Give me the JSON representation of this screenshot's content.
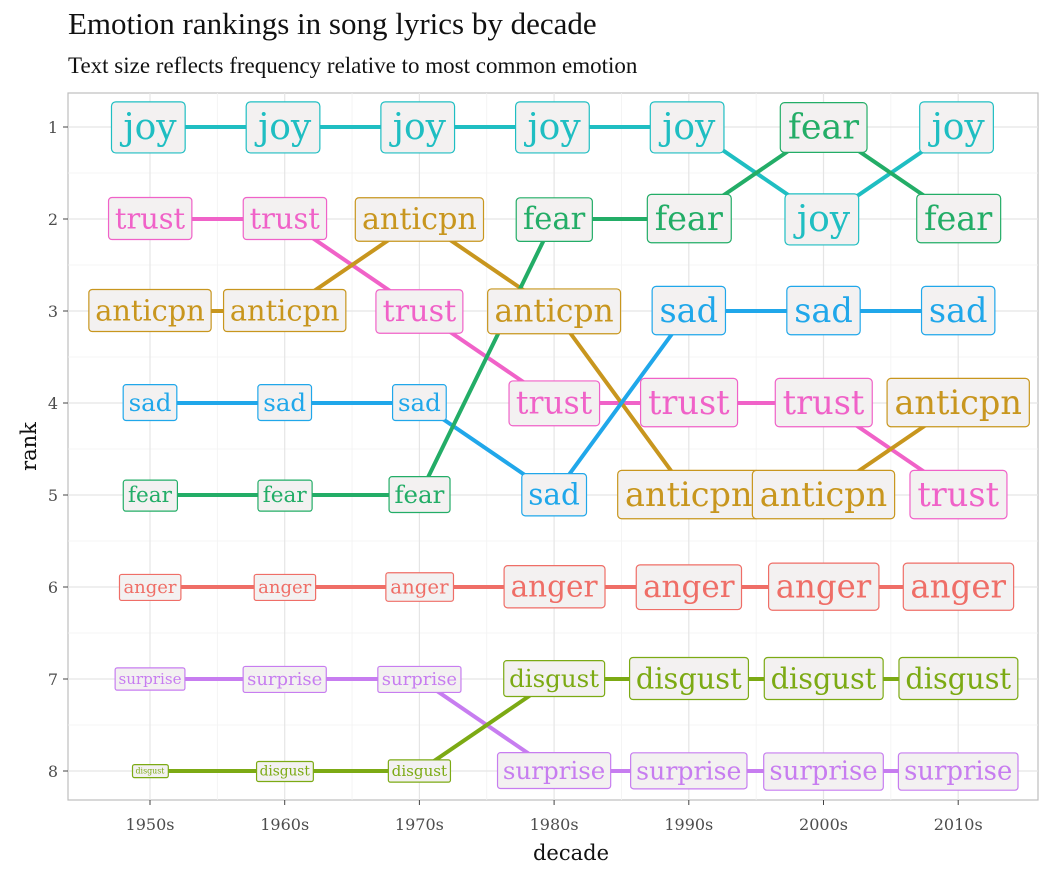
{
  "title": "Emotion rankings in song lyrics by decade",
  "subtitle": "Text size reflects frequency relative to most common emotion",
  "chart_data": {
    "type": "line",
    "xlabel": "decade",
    "ylabel": "rank",
    "x_categories": [
      "1950s",
      "1960s",
      "1970s",
      "1980s",
      "1990s",
      "2000s",
      "2010s"
    ],
    "y_ticks": [
      1,
      2,
      3,
      4,
      5,
      6,
      7,
      8
    ],
    "y_reversed": true,
    "grid": true,
    "series": [
      {
        "name": "joy",
        "label": "joy",
        "color": "#1fbec2",
        "ranks": [
          1,
          1,
          1,
          1,
          1,
          2,
          1
        ],
        "sizes": [
          1,
          1,
          1,
          1,
          1,
          1,
          1
        ]
      },
      {
        "name": "trust",
        "label": "trust",
        "color": "#f062c8",
        "ranks": [
          2,
          2,
          3,
          4,
          4,
          4,
          5
        ],
        "sizes": [
          0.8,
          0.8,
          0.84,
          0.87,
          0.93,
          0.93,
          0.93
        ]
      },
      {
        "name": "anticpn",
        "label": "anticpn",
        "color": "#c8961e",
        "ranks": [
          3,
          3,
          2,
          3,
          5,
          5,
          4
        ],
        "sizes": [
          0.8,
          0.8,
          0.84,
          0.87,
          0.93,
          0.93,
          0.93
        ]
      },
      {
        "name": "sad",
        "label": "sad",
        "color": "#20a7ea",
        "ranks": [
          4,
          4,
          4,
          5,
          3,
          3,
          3
        ],
        "sizes": [
          0.68,
          0.68,
          0.68,
          0.82,
          0.93,
          0.93,
          0.93
        ]
      },
      {
        "name": "fear",
        "label": "fear",
        "color": "#23ad67",
        "ranks": [
          5,
          5,
          5,
          2,
          2,
          1,
          2
        ],
        "sizes": [
          0.6,
          0.6,
          0.68,
          0.85,
          0.93,
          0.97,
          0.93
        ]
      },
      {
        "name": "anger",
        "label": "anger",
        "color": "#ef6e67",
        "ranks": [
          6,
          6,
          6,
          6,
          6,
          6,
          6
        ],
        "sizes": [
          0.5,
          0.5,
          0.55,
          0.82,
          0.86,
          0.9,
          0.9
        ]
      },
      {
        "name": "surprise",
        "label": "surprise",
        "color": "#c77df0",
        "ranks": [
          7,
          7,
          7,
          8,
          8,
          8,
          8
        ],
        "sizes": [
          0.42,
          0.5,
          0.5,
          0.68,
          0.7,
          0.72,
          0.72
        ]
      },
      {
        "name": "disgust",
        "label": "disgust",
        "color": "#7caa14",
        "ranks": [
          8,
          8,
          8,
          7,
          7,
          7,
          7
        ],
        "sizes": [
          0.22,
          0.38,
          0.42,
          0.68,
          0.8,
          0.8,
          0.8
        ]
      }
    ]
  }
}
